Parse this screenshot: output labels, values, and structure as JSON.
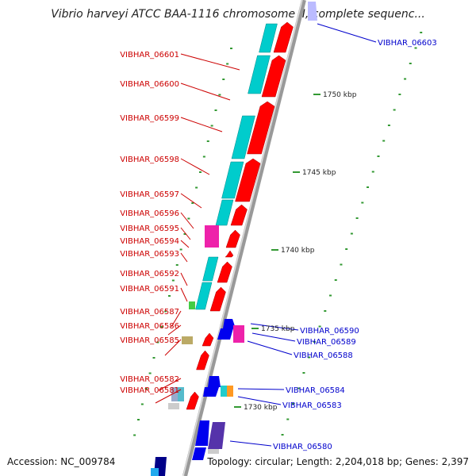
{
  "title": "Vibrio harveyi ATCC BAA-1116 chromosome II, complete sequenc...",
  "accession_label": "Accession: NC_009784",
  "summary_label": "Topology: circular; Length: 2,204,018 bp; Genes: 2,397",
  "scale_labels": [
    "1750 kbp",
    "1745 kbp",
    "1740 kbp",
    "1735 kbp",
    "1730 kbp"
  ],
  "left_genes": [
    "VIBHAR_06601",
    "VIBHAR_06600",
    "VIBHAR_06599",
    "VIBHAR_06598",
    "VIBHAR_06597",
    "VIBHAR_06596",
    "VIBHAR_06595",
    "VIBHAR_06594",
    "VIBHAR_06593",
    "VIBHAR_06592",
    "VIBHAR_06591",
    "VIBHAR_06587",
    "VIBHAR_06586",
    "VIBHAR_06585",
    "VIBHAR_06582",
    "VIBHAR_06581"
  ],
  "right_genes": [
    "VIBHAR_06603",
    "VIBHAR_06590",
    "VIBHAR_06589",
    "VIBHAR_06588",
    "VIBHAR_06584",
    "VIBHAR_06583",
    "VIBHAR_06580"
  ],
  "colors": {
    "forward_strand": "#ff0000",
    "reverse_strand": "#0000ff",
    "cds_feature": "#00cccc",
    "left_label": "#cc0000",
    "right_label": "#0000cc",
    "backbone": "#888888",
    "tick": "#339933"
  }
}
